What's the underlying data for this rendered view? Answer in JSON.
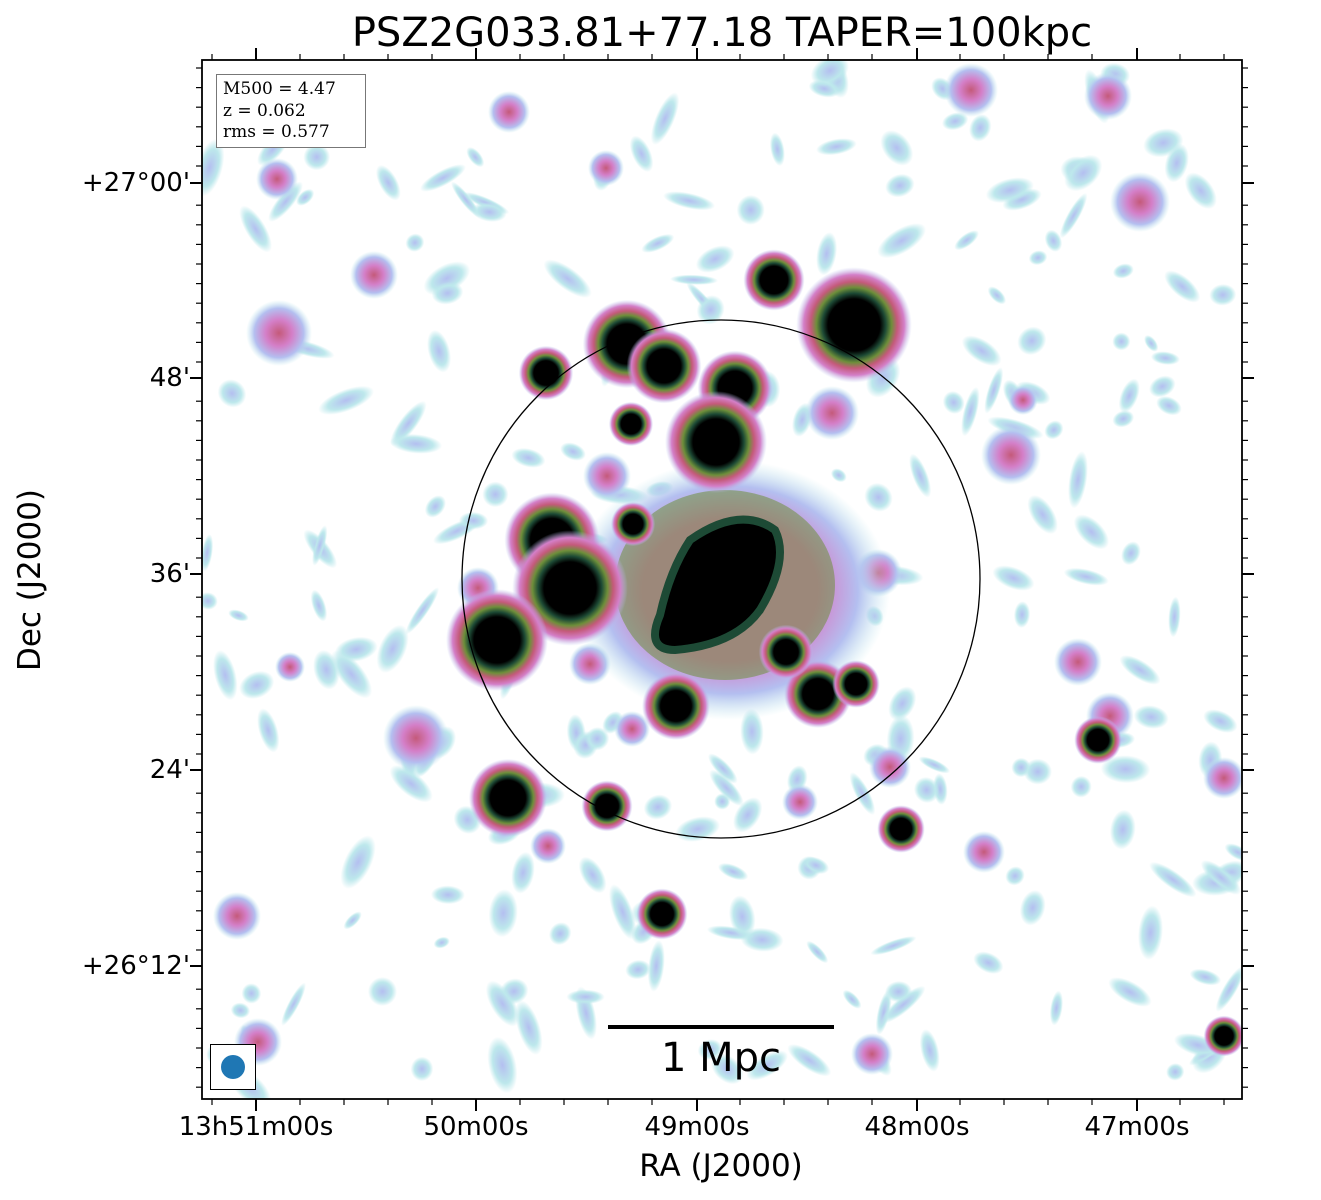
{
  "title": "PSZ2G033.81+77.18 TAPER=100kpc",
  "info": {
    "mass": "M500 = 4.47",
    "redshift": "z = 0.062",
    "rms": "rms = 0.577"
  },
  "axes": {
    "xlabel": "RA (J2000)",
    "ylabel": "Dec (J2000)",
    "xticks": [
      "13h51m00s",
      "50m00s",
      "49m00s",
      "48m00s",
      "47m00s"
    ],
    "yticks": [
      "+27°00'",
      "48'",
      "36'",
      "24'",
      "+26°12'"
    ]
  },
  "scale_bar": {
    "label": "1 Mpc"
  },
  "colors": {
    "beam": "#1f77b4",
    "colormap": [
      "#ffffff",
      "#bde8ec",
      "#b4bff0",
      "#d47fc8",
      "#c45a7a",
      "#6e8f3a",
      "#1d4a35",
      "#000000"
    ]
  }
}
